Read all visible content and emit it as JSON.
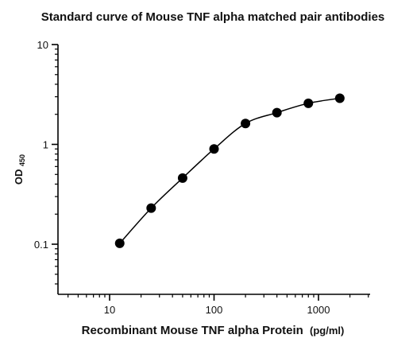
{
  "chart_data": {
    "type": "scatter",
    "title": "Standard curve of Mouse TNF alpha matched pair antibodies",
    "xlabel": "Recombinant Mouse TNF alpha Protein",
    "xlabel_unit": "(pg/ml)",
    "ylabel_main": "OD",
    "ylabel_sub": "450",
    "x_scale": "log",
    "y_scale": "log",
    "xlim": [
      4,
      3200
    ],
    "ylim": [
      0.01,
      10
    ],
    "x_ticks": [
      {
        "value": 10,
        "label": "10"
      },
      {
        "value": 100,
        "label": "100"
      },
      {
        "value": 1000,
        "label": "1000"
      }
    ],
    "y_ticks": [
      {
        "value": 0.1,
        "label": "0.1"
      },
      {
        "value": 1,
        "label": "1"
      },
      {
        "value": 10,
        "label": "10"
      }
    ],
    "series": [
      {
        "x": [
          12.5,
          25,
          50,
          100,
          200,
          400,
          800,
          1600
        ],
        "y": [
          0.102,
          0.23,
          0.46,
          0.9,
          1.62,
          2.08,
          2.58,
          2.9
        ],
        "marker": "circle",
        "fit_curve": true
      }
    ],
    "grid": false,
    "legend": "none",
    "colors": {
      "marks": "#000000",
      "axis": "#000000"
    }
  }
}
